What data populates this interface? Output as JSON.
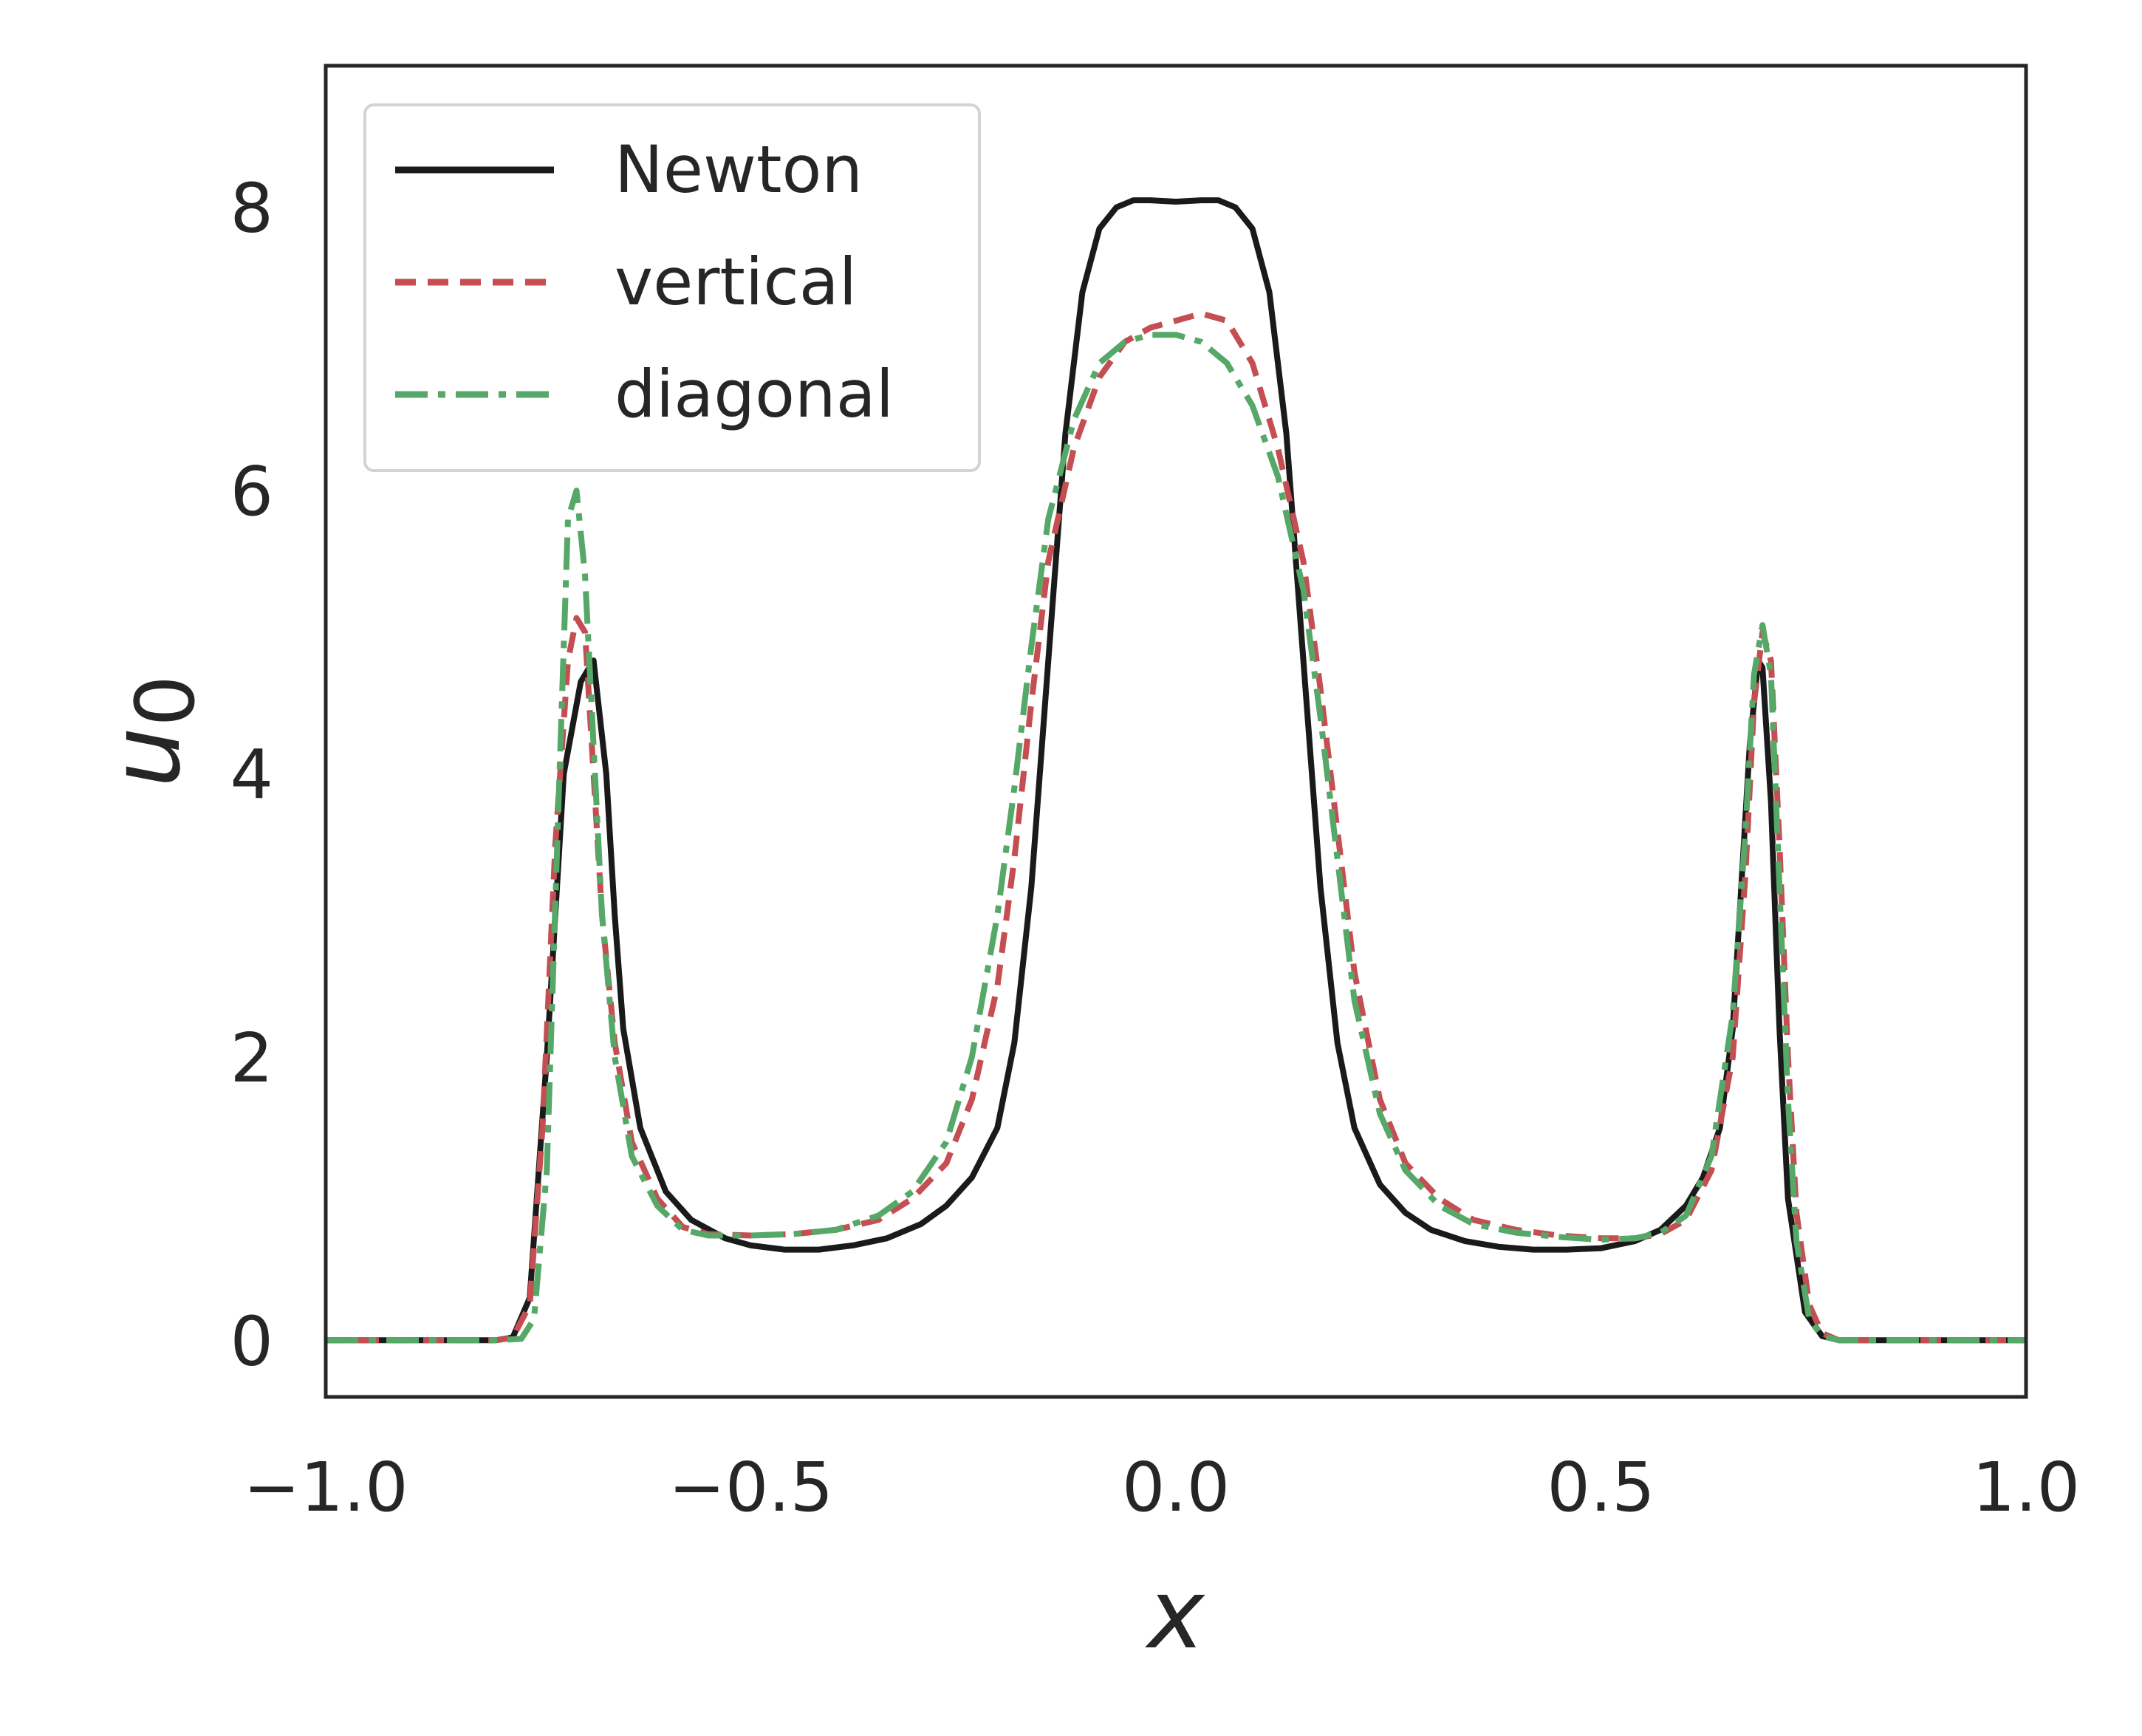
{
  "chart_data": {
    "type": "line",
    "xlabel": "x",
    "ylabel_base": "u",
    "ylabel_sub": "0",
    "xlim": [
      -1.0,
      1.0
    ],
    "ylim": [
      -0.4,
      9.0
    ],
    "xticks": [
      -1.0,
      -0.5,
      0.0,
      0.5,
      1.0
    ],
    "xtick_labels": [
      "−1.0",
      "−0.5",
      "0.0",
      "0.5",
      "1.0"
    ],
    "yticks": [
      0,
      2,
      4,
      6,
      8
    ],
    "ytick_labels": [
      "0",
      "2",
      "4",
      "6",
      "8"
    ],
    "grid": false,
    "legend_position": "top-left",
    "series": [
      {
        "name": "Newton",
        "color": "#1a1a1a",
        "style": "solid",
        "x": [
          -1.0,
          -0.8,
          -0.78,
          -0.76,
          -0.74,
          -0.72,
          -0.7,
          -0.685,
          -0.67,
          -0.66,
          -0.65,
          -0.63,
          -0.6,
          -0.57,
          -0.53,
          -0.5,
          -0.46,
          -0.42,
          -0.38,
          -0.34,
          -0.3,
          -0.27,
          -0.24,
          -0.21,
          -0.19,
          -0.17,
          -0.15,
          -0.13,
          -0.11,
          -0.09,
          -0.07,
          -0.05,
          -0.03,
          0.0,
          0.03,
          0.05,
          0.07,
          0.09,
          0.11,
          0.13,
          0.15,
          0.17,
          0.19,
          0.21,
          0.24,
          0.27,
          0.3,
          0.34,
          0.38,
          0.42,
          0.46,
          0.5,
          0.54,
          0.57,
          0.6,
          0.62,
          0.64,
          0.655,
          0.665,
          0.675,
          0.685,
          0.69,
          0.7,
          0.71,
          0.72,
          0.74,
          0.76,
          0.78,
          0.8,
          0.85,
          1.0
        ],
        "y": [
          0.0,
          0.0,
          0.02,
          0.3,
          2.0,
          4.0,
          4.65,
          4.8,
          4.0,
          3.0,
          2.2,
          1.5,
          1.05,
          0.85,
          0.72,
          0.67,
          0.64,
          0.64,
          0.67,
          0.72,
          0.82,
          0.95,
          1.15,
          1.5,
          2.1,
          3.2,
          4.8,
          6.4,
          7.4,
          7.85,
          8.0,
          8.05,
          8.05,
          8.04,
          8.05,
          8.05,
          8.0,
          7.85,
          7.4,
          6.4,
          4.8,
          3.2,
          2.1,
          1.5,
          1.1,
          0.9,
          0.78,
          0.7,
          0.66,
          0.64,
          0.64,
          0.65,
          0.7,
          0.78,
          0.95,
          1.15,
          1.5,
          2.2,
          3.2,
          4.2,
          4.8,
          4.75,
          3.8,
          2.2,
          1.0,
          0.2,
          0.03,
          0.0,
          0.0,
          0.0,
          0.0
        ]
      },
      {
        "name": "vertical",
        "color": "#c44e52",
        "style": "dashed",
        "x": [
          -1.0,
          -0.8,
          -0.78,
          -0.76,
          -0.745,
          -0.73,
          -0.715,
          -0.705,
          -0.695,
          -0.685,
          -0.675,
          -0.66,
          -0.64,
          -0.61,
          -0.58,
          -0.55,
          -0.5,
          -0.45,
          -0.4,
          -0.35,
          -0.31,
          -0.27,
          -0.24,
          -0.21,
          -0.19,
          -0.17,
          -0.15,
          -0.12,
          -0.09,
          -0.06,
          -0.03,
          0.0,
          0.03,
          0.06,
          0.09,
          0.12,
          0.15,
          0.17,
          0.19,
          0.21,
          0.24,
          0.27,
          0.31,
          0.35,
          0.4,
          0.45,
          0.5,
          0.54,
          0.57,
          0.6,
          0.63,
          0.655,
          0.67,
          0.68,
          0.69,
          0.7,
          0.71,
          0.72,
          0.73,
          0.745,
          0.76,
          0.78,
          0.8,
          0.85,
          1.0
        ],
        "y": [
          0.0,
          0.0,
          0.02,
          0.25,
          1.5,
          3.5,
          4.8,
          5.1,
          5.0,
          4.0,
          3.0,
          2.1,
          1.4,
          1.0,
          0.8,
          0.75,
          0.74,
          0.75,
          0.78,
          0.85,
          1.0,
          1.25,
          1.7,
          2.5,
          3.4,
          4.5,
          5.5,
          6.3,
          6.8,
          7.05,
          7.15,
          7.2,
          7.25,
          7.2,
          6.9,
          6.3,
          5.5,
          4.6,
          3.6,
          2.6,
          1.7,
          1.25,
          1.0,
          0.85,
          0.78,
          0.74,
          0.72,
          0.72,
          0.75,
          0.85,
          1.2,
          2.0,
          3.3,
          4.5,
          5.0,
          4.8,
          3.5,
          2.0,
          0.9,
          0.25,
          0.05,
          0.0,
          0.0,
          0.0,
          0.0
        ]
      },
      {
        "name": "diagonal",
        "color": "#55a868",
        "style": "dashdot",
        "x": [
          -1.0,
          -0.8,
          -0.77,
          -0.755,
          -0.74,
          -0.725,
          -0.715,
          -0.705,
          -0.695,
          -0.685,
          -0.675,
          -0.66,
          -0.64,
          -0.61,
          -0.58,
          -0.55,
          -0.5,
          -0.45,
          -0.4,
          -0.35,
          -0.31,
          -0.27,
          -0.24,
          -0.21,
          -0.19,
          -0.17,
          -0.15,
          -0.12,
          -0.09,
          -0.06,
          -0.03,
          0.0,
          0.03,
          0.06,
          0.09,
          0.12,
          0.15,
          0.17,
          0.19,
          0.21,
          0.24,
          0.27,
          0.31,
          0.35,
          0.4,
          0.45,
          0.5,
          0.54,
          0.57,
          0.6,
          0.63,
          0.655,
          0.67,
          0.68,
          0.69,
          0.7,
          0.71,
          0.72,
          0.73,
          0.745,
          0.76,
          0.78,
          0.8,
          0.85,
          1.0
        ],
        "y": [
          0.0,
          0.0,
          0.01,
          0.15,
          1.2,
          4.0,
          5.8,
          6.0,
          5.4,
          4.2,
          3.0,
          2.0,
          1.3,
          0.95,
          0.78,
          0.74,
          0.74,
          0.75,
          0.78,
          0.88,
          1.05,
          1.4,
          2.0,
          3.0,
          3.9,
          4.9,
          5.8,
          6.5,
          6.9,
          7.05,
          7.1,
          7.1,
          7.05,
          6.9,
          6.6,
          6.1,
          5.3,
          4.4,
          3.4,
          2.4,
          1.6,
          1.2,
          0.95,
          0.82,
          0.76,
          0.73,
          0.71,
          0.72,
          0.76,
          0.88,
          1.3,
          2.3,
          3.6,
          4.7,
          5.05,
          4.7,
          3.2,
          1.7,
          0.7,
          0.15,
          0.03,
          0.0,
          0.0,
          0.0,
          0.0
        ]
      }
    ]
  }
}
